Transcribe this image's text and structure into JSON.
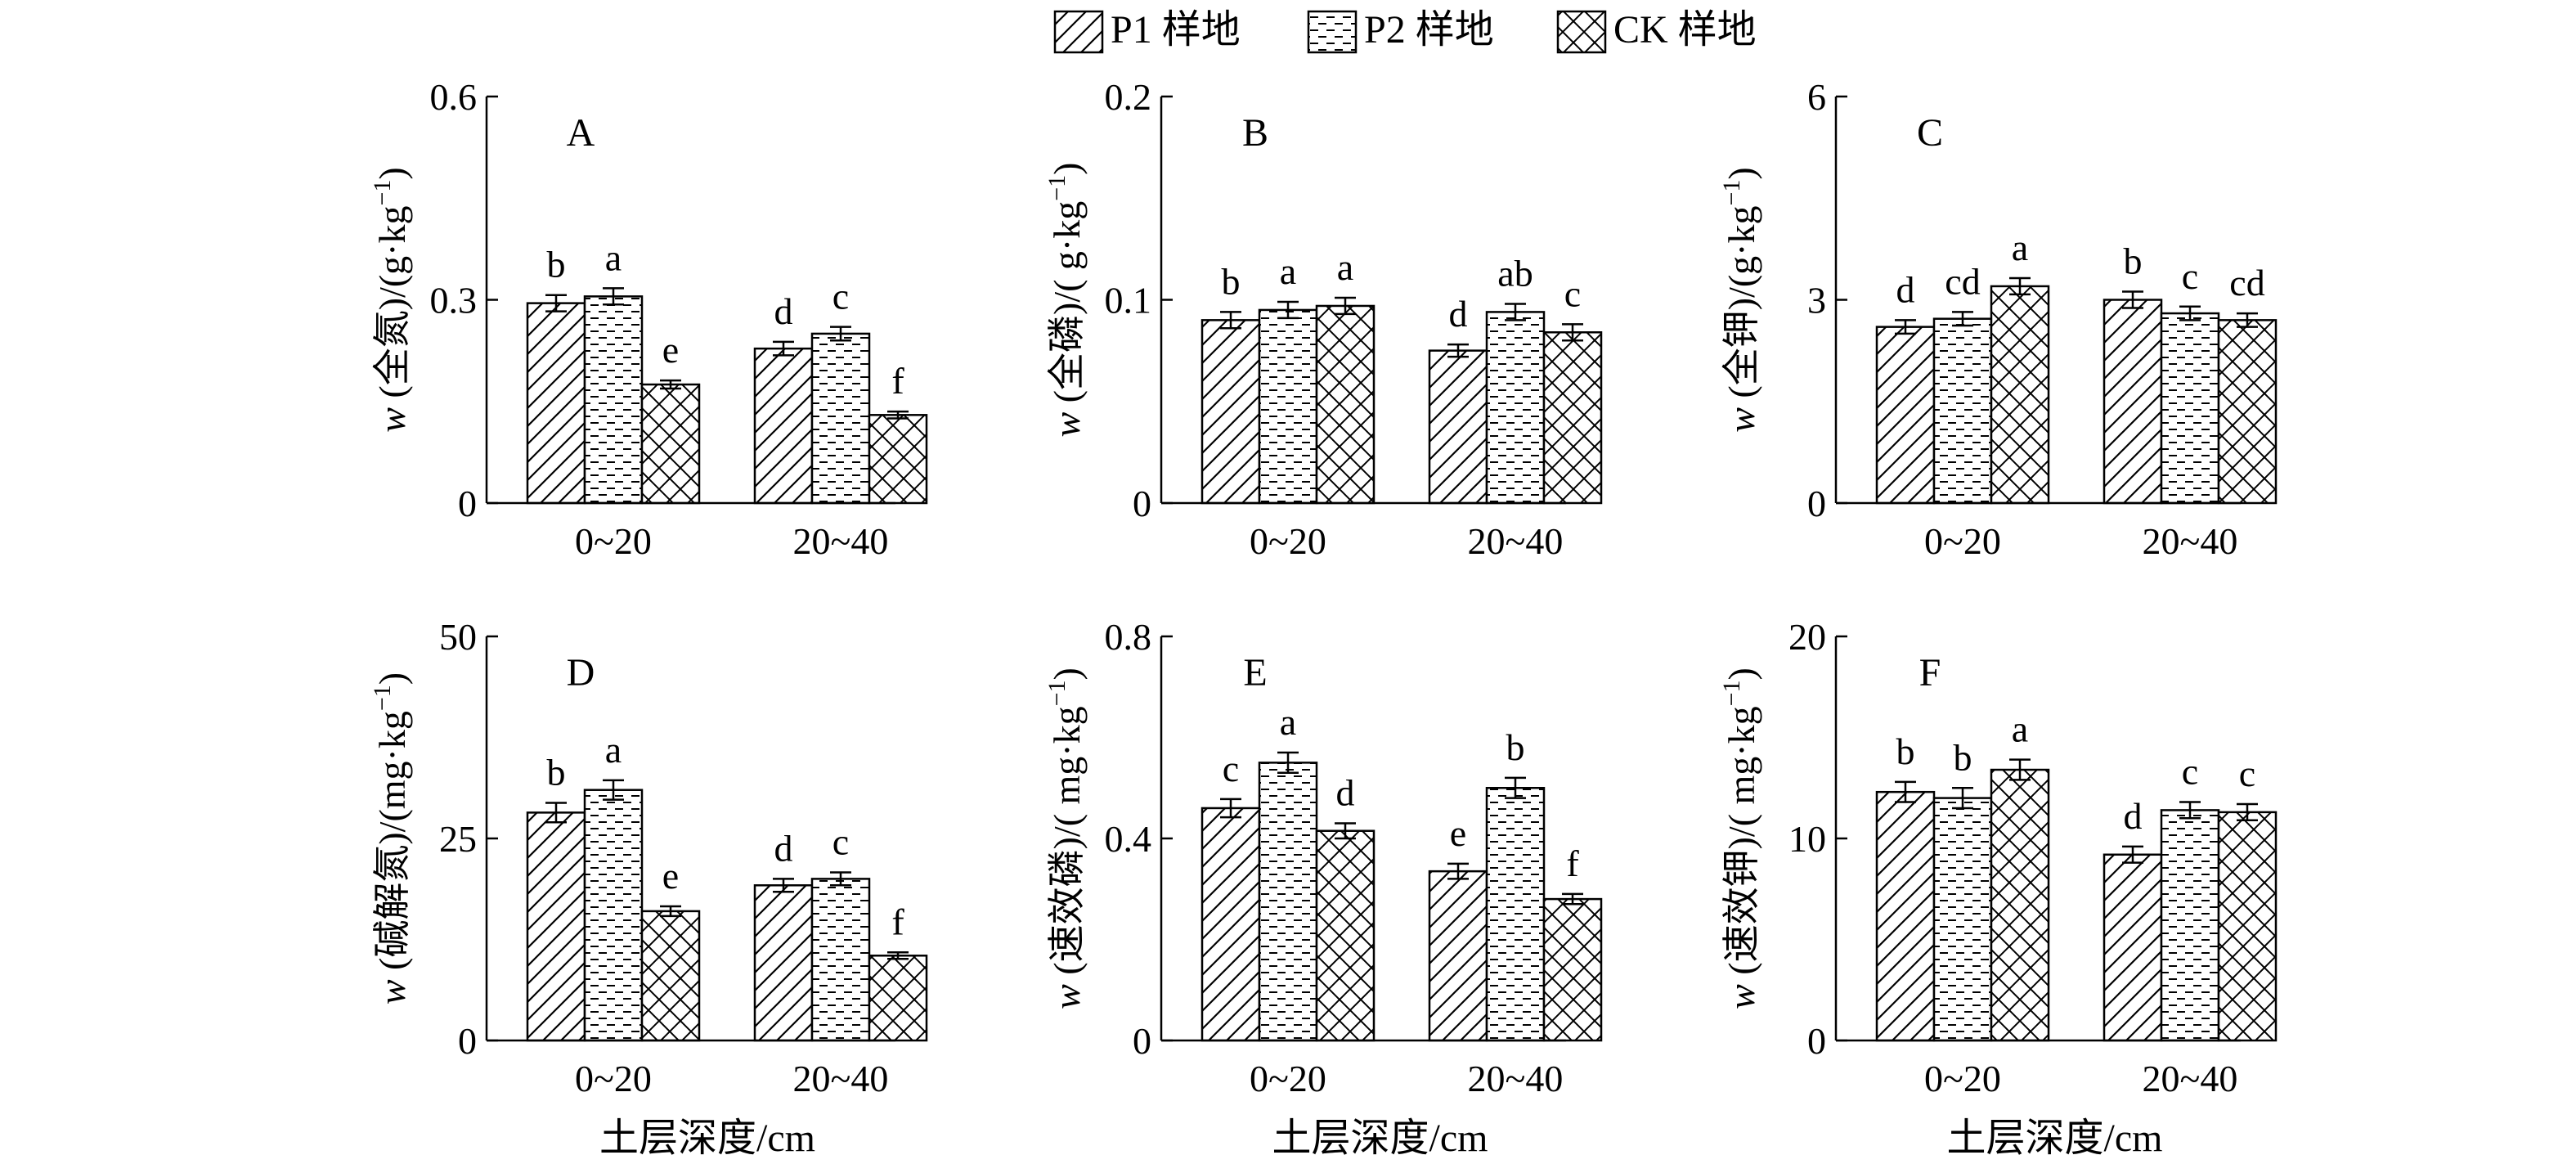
{
  "legend": {
    "position": "top-center",
    "items": [
      {
        "label": "P1 样地",
        "pattern": "diagonal"
      },
      {
        "label": "P2 样地",
        "pattern": "dashed-horizontal"
      },
      {
        "label": "CK 样地",
        "pattern": "crosshatch"
      }
    ]
  },
  "chart_data": [
    {
      "type": "bar",
      "panel": "A",
      "ylabel_prefix": "w",
      "ylabel": "(全氮)/(g·kg",
      "ylabel_sup": "−1",
      "ylabel_suffix": ")",
      "xlabel": "",
      "categories": [
        "0~20",
        "20~40"
      ],
      "ylim": [
        0,
        0.6
      ],
      "yticks": [
        "0",
        "0.3",
        "0.6"
      ],
      "series": [
        {
          "name": "P1 样地",
          "values": [
            0.295,
            0.228
          ],
          "errors": [
            0.012,
            0.01
          ],
          "letters": [
            "b",
            "d"
          ]
        },
        {
          "name": "P2 样地",
          "values": [
            0.305,
            0.25
          ],
          "errors": [
            0.012,
            0.01
          ],
          "letters": [
            "a",
            "c"
          ]
        },
        {
          "name": "CK 样地",
          "values": [
            0.175,
            0.13
          ],
          "errors": [
            0.006,
            0.005
          ],
          "letters": [
            "e",
            "f"
          ]
        }
      ]
    },
    {
      "type": "bar",
      "panel": "B",
      "ylabel_prefix": "w",
      "ylabel": "(全磷)/( g·kg",
      "ylabel_sup": "−1",
      "ylabel_suffix": ")",
      "xlabel": "",
      "categories": [
        "0~20",
        "20~40"
      ],
      "ylim": [
        0,
        0.2
      ],
      "yticks": [
        "0",
        "0.1",
        "0.2"
      ],
      "series": [
        {
          "name": "P1 样地",
          "values": [
            0.09,
            0.075
          ],
          "errors": [
            0.004,
            0.003
          ],
          "letters": [
            "b",
            "d"
          ]
        },
        {
          "name": "P2 样地",
          "values": [
            0.095,
            0.094
          ],
          "errors": [
            0.004,
            0.004
          ],
          "letters": [
            "a",
            "ab"
          ]
        },
        {
          "name": "CK 样地",
          "values": [
            0.097,
            0.084
          ],
          "errors": [
            0.004,
            0.004
          ],
          "letters": [
            "a",
            "c"
          ]
        }
      ]
    },
    {
      "type": "bar",
      "panel": "C",
      "ylabel_prefix": "w",
      "ylabel": "(全钾)/(g·kg",
      "ylabel_sup": "−1",
      "ylabel_suffix": ")",
      "xlabel": "",
      "categories": [
        "0~20",
        "20~40"
      ],
      "ylim": [
        0,
        6
      ],
      "yticks": [
        "0",
        "3",
        "6"
      ],
      "series": [
        {
          "name": "P1 样地",
          "values": [
            2.6,
            3.0
          ],
          "errors": [
            0.1,
            0.12
          ],
          "letters": [
            "d",
            "b"
          ]
        },
        {
          "name": "P2 样地",
          "values": [
            2.72,
            2.8
          ],
          "errors": [
            0.1,
            0.1
          ],
          "letters": [
            "cd",
            "c"
          ]
        },
        {
          "name": "CK 样地",
          "values": [
            3.2,
            2.7
          ],
          "errors": [
            0.12,
            0.1
          ],
          "letters": [
            "a",
            "cd"
          ]
        }
      ]
    },
    {
      "type": "bar",
      "panel": "D",
      "ylabel_prefix": "w",
      "ylabel": "(碱解氮)/(mg·kg",
      "ylabel_sup": "−1",
      "ylabel_suffix": ")",
      "xlabel": "土层深度/cm",
      "categories": [
        "0~20",
        "20~40"
      ],
      "ylim": [
        0,
        50
      ],
      "yticks": [
        "0",
        "25",
        "50"
      ],
      "series": [
        {
          "name": "P1 样地",
          "values": [
            28.2,
            19.2
          ],
          "errors": [
            1.2,
            0.8
          ],
          "letters": [
            "b",
            "d"
          ]
        },
        {
          "name": "P2 样地",
          "values": [
            31.0,
            20.0
          ],
          "errors": [
            1.2,
            0.8
          ],
          "letters": [
            "a",
            "c"
          ]
        },
        {
          "name": "CK 样地",
          "values": [
            16.0,
            10.5
          ],
          "errors": [
            0.6,
            0.4
          ],
          "letters": [
            "e",
            "f"
          ]
        }
      ]
    },
    {
      "type": "bar",
      "panel": "E",
      "ylabel_prefix": "w",
      "ylabel": "(速效磷)/( mg·kg",
      "ylabel_sup": "−1",
      "ylabel_suffix": ")",
      "xlabel": "土层深度/cm",
      "categories": [
        "0~20",
        "20~40"
      ],
      "ylim": [
        0,
        0.8
      ],
      "yticks": [
        "0",
        "0.4",
        "0.8"
      ],
      "series": [
        {
          "name": "P1 样地",
          "values": [
            0.46,
            0.335
          ],
          "errors": [
            0.018,
            0.015
          ],
          "letters": [
            "c",
            "e"
          ]
        },
        {
          "name": "P2 样地",
          "values": [
            0.55,
            0.5
          ],
          "errors": [
            0.02,
            0.02
          ],
          "letters": [
            "a",
            "b"
          ]
        },
        {
          "name": "CK 样地",
          "values": [
            0.415,
            0.28
          ],
          "errors": [
            0.015,
            0.01
          ],
          "letters": [
            "d",
            "f"
          ]
        }
      ]
    },
    {
      "type": "bar",
      "panel": "F",
      "ylabel_prefix": "w",
      "ylabel": "(速效钾)/( mg·kg",
      "ylabel_sup": "−1",
      "ylabel_suffix": ")",
      "xlabel": "土层深度/cm",
      "categories": [
        "0~20",
        "20~40"
      ],
      "ylim": [
        0,
        20
      ],
      "yticks": [
        "0",
        "10",
        "20"
      ],
      "series": [
        {
          "name": "P1 样地",
          "values": [
            12.3,
            9.2
          ],
          "errors": [
            0.5,
            0.4
          ],
          "letters": [
            "b",
            "d"
          ]
        },
        {
          "name": "P2 样地",
          "values": [
            12.0,
            11.4
          ],
          "errors": [
            0.5,
            0.4
          ],
          "letters": [
            "b",
            "c"
          ]
        },
        {
          "name": "CK 样地",
          "values": [
            13.4,
            11.3
          ],
          "errors": [
            0.5,
            0.4
          ],
          "letters": [
            "a",
            "c"
          ]
        }
      ]
    }
  ]
}
